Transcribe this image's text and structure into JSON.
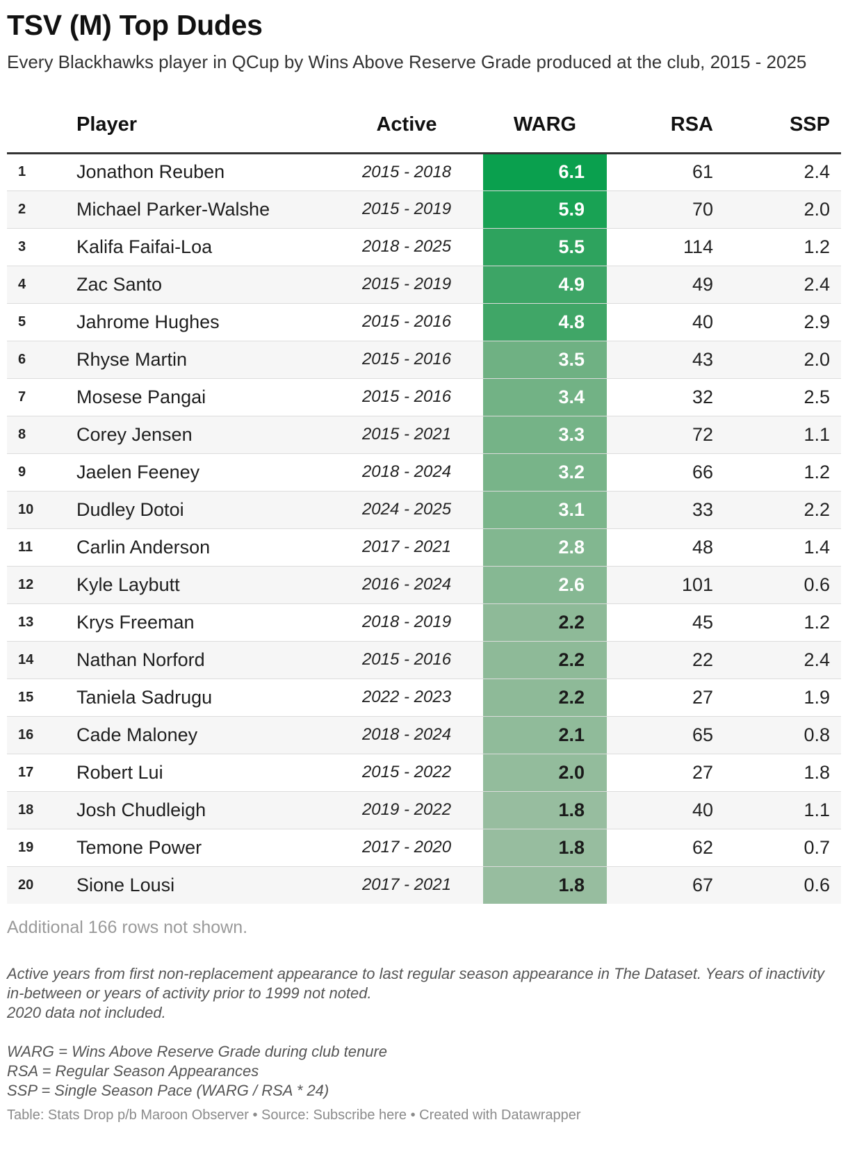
{
  "title": "TSV (M) Top Dudes",
  "subtitle": "Every Blackhawks player in QCup by Wins Above Reserve Grade produced at the club, 2015 - 2025",
  "columns": {
    "rank": "",
    "player": "Player",
    "active": "Active",
    "warg": "WARG",
    "rsa": "RSA",
    "ssp": "SSP"
  },
  "rows": [
    {
      "rank": "1",
      "player": "Jonathon Reuben",
      "active": "2015 - 2018",
      "warg": "6.1",
      "rsa": "61",
      "ssp": "2.4",
      "warg_color": "#0aa04e",
      "warg_text_color": "#ffffff"
    },
    {
      "rank": "2",
      "player": "Michael Parker-Walshe",
      "active": "2015 - 2019",
      "warg": "5.9",
      "rsa": "70",
      "ssp": "2.0",
      "warg_color": "#19a254",
      "warg_text_color": "#ffffff"
    },
    {
      "rank": "3",
      "player": "Kalifa Faifai-Loa",
      "active": "2018 - 2025",
      "warg": "5.5",
      "rsa": "114",
      "ssp": "1.2",
      "warg_color": "#2ea35e",
      "warg_text_color": "#ffffff"
    },
    {
      "rank": "4",
      "player": "Zac Santo",
      "active": "2015 - 2019",
      "warg": "4.9",
      "rsa": "49",
      "ssp": "2.4",
      "warg_color": "#3da566",
      "warg_text_color": "#ffffff"
    },
    {
      "rank": "5",
      "player": "Jahrome Hughes",
      "active": "2015 - 2016",
      "warg": "4.8",
      "rsa": "40",
      "ssp": "2.9",
      "warg_color": "#40a667",
      "warg_text_color": "#ffffff"
    },
    {
      "rank": "6",
      "player": "Rhyse Martin",
      "active": "2015 - 2016",
      "warg": "3.5",
      "rsa": "43",
      "ssp": "2.0",
      "warg_color": "#6fb183",
      "warg_text_color": "#ffffff"
    },
    {
      "rank": "7",
      "player": "Mosese Pangai",
      "active": "2015 - 2016",
      "warg": "3.4",
      "rsa": "32",
      "ssp": "2.5",
      "warg_color": "#72b285",
      "warg_text_color": "#ffffff"
    },
    {
      "rank": "8",
      "player": "Corey Jensen",
      "active": "2015 - 2021",
      "warg": "3.3",
      "rsa": "72",
      "ssp": "1.1",
      "warg_color": "#75b387",
      "warg_text_color": "#ffffff"
    },
    {
      "rank": "9",
      "player": "Jaelen Feeney",
      "active": "2018 - 2024",
      "warg": "3.2",
      "rsa": "66",
      "ssp": "1.2",
      "warg_color": "#78b489",
      "warg_text_color": "#ffffff"
    },
    {
      "rank": "10",
      "player": "Dudley Dotoi",
      "active": "2024 - 2025",
      "warg": "3.1",
      "rsa": "33",
      "ssp": "2.2",
      "warg_color": "#7bb58b",
      "warg_text_color": "#ffffff"
    },
    {
      "rank": "11",
      "player": "Carlin Anderson",
      "active": "2017 - 2021",
      "warg": "2.8",
      "rsa": "48",
      "ssp": "1.4",
      "warg_color": "#82b790",
      "warg_text_color": "#ffffff"
    },
    {
      "rank": "12",
      "player": "Kyle Laybutt",
      "active": "2016 - 2024",
      "warg": "2.6",
      "rsa": "101",
      "ssp": "0.6",
      "warg_color": "#86b893",
      "warg_text_color": "#ffffff"
    },
    {
      "rank": "13",
      "player": "Krys Freeman",
      "active": "2018 - 2019",
      "warg": "2.2",
      "rsa": "45",
      "ssp": "1.2",
      "warg_color": "#8eba98",
      "warg_text_color": "#1a1a1a"
    },
    {
      "rank": "14",
      "player": "Nathan Norford",
      "active": "2015 - 2016",
      "warg": "2.2",
      "rsa": "22",
      "ssp": "2.4",
      "warg_color": "#8eba98",
      "warg_text_color": "#1a1a1a"
    },
    {
      "rank": "15",
      "player": "Taniela Sadrugu",
      "active": "2022 - 2023",
      "warg": "2.2",
      "rsa": "27",
      "ssp": "1.9",
      "warg_color": "#8eba98",
      "warg_text_color": "#1a1a1a"
    },
    {
      "rank": "16",
      "player": "Cade Maloney",
      "active": "2018 - 2024",
      "warg": "2.1",
      "rsa": "65",
      "ssp": "0.8",
      "warg_color": "#90bb9a",
      "warg_text_color": "#1a1a1a"
    },
    {
      "rank": "17",
      "player": "Robert Lui",
      "active": "2015 - 2022",
      "warg": "2.0",
      "rsa": "27",
      "ssp": "1.8",
      "warg_color": "#93bc9c",
      "warg_text_color": "#1a1a1a"
    },
    {
      "rank": "18",
      "player": "Josh Chudleigh",
      "active": "2019 - 2022",
      "warg": "1.8",
      "rsa": "40",
      "ssp": "1.1",
      "warg_color": "#97bd9f",
      "warg_text_color": "#1a1a1a"
    },
    {
      "rank": "19",
      "player": "Temone Power",
      "active": "2017 - 2020",
      "warg": "1.8",
      "rsa": "62",
      "ssp": "0.7",
      "warg_color": "#97bd9f",
      "warg_text_color": "#1a1a1a"
    },
    {
      "rank": "20",
      "player": "Sione Lousi",
      "active": "2017 - 2021",
      "warg": "1.8",
      "rsa": "67",
      "ssp": "0.6",
      "warg_color": "#97bd9f",
      "warg_text_color": "#1a1a1a"
    }
  ],
  "more_rows": "Additional 166 rows not shown.",
  "notes": {
    "line1": "Active years from first non-replacement appearance to last regular season appearance in The Dataset. Years of inactivity in-between or years of activity prior to 1999 not noted.",
    "line2": "2020 data not included.",
    "def_warg": "WARG = Wins Above Reserve Grade during club tenure",
    "def_rsa": "RSA = Regular Season Appearances",
    "def_ssp": "SSP = Single Season Pace (WARG / RSA * 24)"
  },
  "footer": "Table: Stats Drop p/b Maroon Observer • Source: Subscribe here • Created with Datawrapper"
}
